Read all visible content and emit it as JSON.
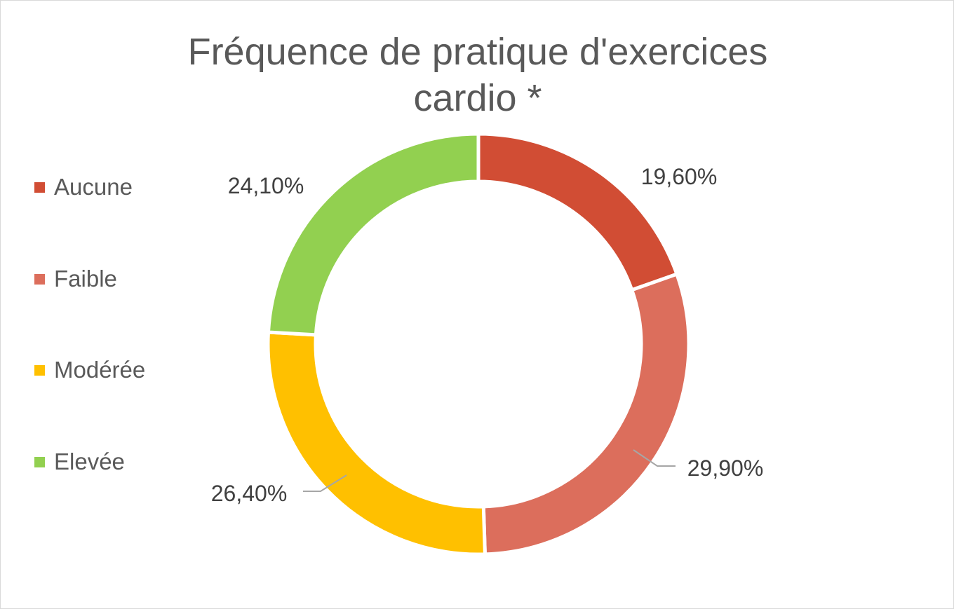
{
  "chart_data": {
    "type": "pie",
    "variant": "doughnut",
    "title_lines": [
      "Fréquence de pratique d'exercices",
      "cardio *"
    ],
    "categories": [
      "Aucune",
      "Faible",
      "Modérée",
      "Elevée"
    ],
    "values": [
      19.6,
      29.9,
      26.4,
      24.1
    ],
    "data_labels": [
      "19,60%",
      "29,90%",
      "26,40%",
      "24,10%"
    ],
    "colors": [
      "#D14D34",
      "#DC6E5C",
      "#FFC000",
      "#92D050"
    ],
    "legend_position": "left"
  }
}
